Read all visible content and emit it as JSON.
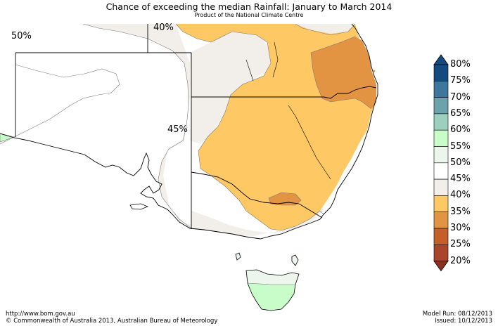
{
  "header": {
    "title": "Chance of exceeding the median Rainfall: January to March 2014",
    "subtitle": "Product of the National Climate Centre"
  },
  "map": {
    "contour_labels": [
      "50%",
      "40%",
      "45%"
    ],
    "colors": {
      "water": "#ffffff",
      "land_45_50": "#f2efea",
      "land_35_40": "#fec964",
      "land_30_35": "#e29443",
      "land_55_60": "#c8fcc9",
      "boundary": "#000000",
      "contour": "#7a7a7a"
    }
  },
  "legend": {
    "labels": [
      "80%",
      "75%",
      "70%",
      "65%",
      "60%",
      "55%",
      "50%",
      "45%",
      "40%",
      "35%",
      "30%",
      "25%",
      "20%"
    ],
    "colors": [
      "#134a80",
      "#3d789c",
      "#6ba2ac",
      "#9ccfbd",
      "#c8fcc9",
      "#ecf6ed",
      "#ffffff",
      "#f2efea",
      "#fec964",
      "#e29443",
      "#c65e2a",
      "#a8452a",
      "#8b2f20"
    ]
  },
  "footer": {
    "url": "http://www.bom.gov.au",
    "copyright": "©  Commonwealth of Australia 2013, Australian Bureau of Meteorology",
    "model_run": "Model Run: 08/12/2013",
    "issued": "Issued: 10/12/2013"
  }
}
